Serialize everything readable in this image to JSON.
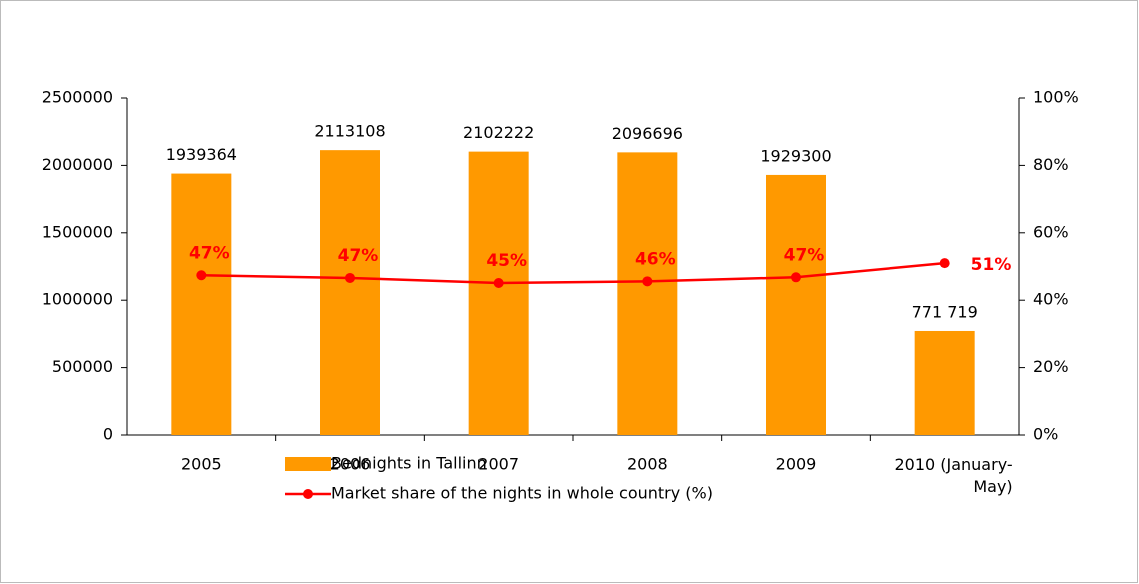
{
  "chart_data": {
    "type": "bar",
    "categories": [
      "2005",
      "2006",
      "2007",
      "2008",
      "2009",
      "2010 (January-May)"
    ],
    "series": [
      {
        "name": "Bednights in Tallinn",
        "type": "bar",
        "color": "#ff9900",
        "values": [
          1939364,
          2113108,
          2102222,
          2096696,
          1929300,
          771719
        ],
        "value_labels": [
          "1939364",
          "2113108",
          "2102222",
          "2096696",
          "1929300",
          "771 719"
        ]
      },
      {
        "name": "Market share of the nights in whole country (%)",
        "type": "line",
        "axis": "y2",
        "color": "#ff0000",
        "values": [
          47.4,
          46.6,
          45.1,
          45.6,
          46.8,
          51.0
        ],
        "value_labels": [
          "47%",
          "47%",
          "45%",
          "46%",
          "47%",
          "51%"
        ]
      }
    ],
    "ylim": [
      0,
      2500000
    ],
    "yticks": [
      0,
      500000,
      1000000,
      1500000,
      2000000,
      2500000
    ],
    "y2lim": [
      0,
      100
    ],
    "y2ticks": [
      {
        "value": 0,
        "label": "0%"
      },
      {
        "value": 20,
        "label": "20%"
      },
      {
        "value": 40,
        "label": "40%"
      },
      {
        "value": 60,
        "label": "60%"
      },
      {
        "value": 80,
        "label": "80%"
      },
      {
        "value": 100,
        "label": "100%"
      }
    ],
    "grid": false,
    "legend": "bottom"
  }
}
